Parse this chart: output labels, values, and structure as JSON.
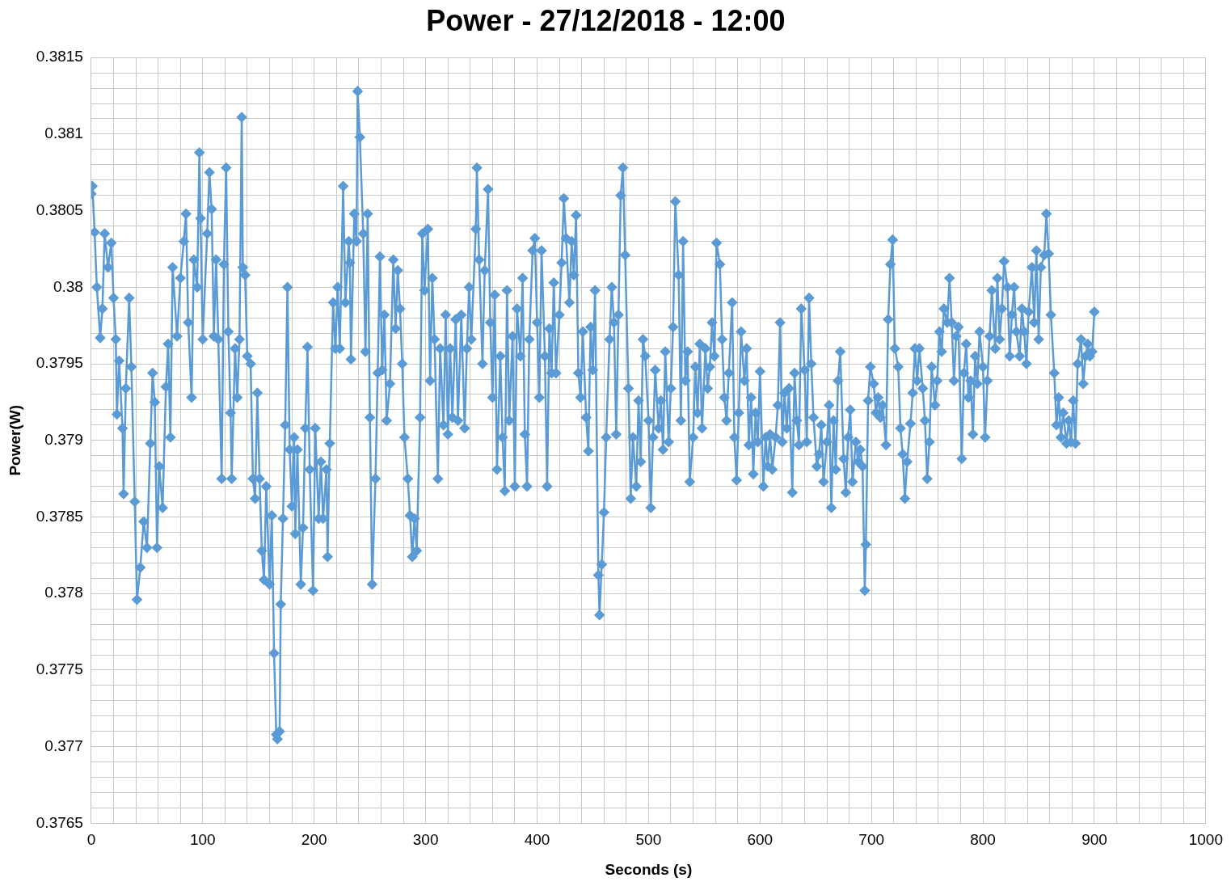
{
  "chart_data": {
    "type": "line",
    "title": "Power - 27/12/2018 - 12:00",
    "xlabel": "Seconds (s)",
    "ylabel": "Power(W)",
    "x": [
      0,
      1,
      3,
      5,
      8,
      10,
      12,
      15,
      18,
      20,
      22,
      23,
      25,
      28,
      29,
      31,
      34,
      36,
      39,
      41,
      44,
      47,
      50,
      53,
      55,
      57,
      59,
      61,
      64,
      67,
      69,
      71,
      73,
      77,
      80,
      83,
      85,
      87,
      90,
      92,
      95,
      97,
      98,
      100,
      104,
      106,
      108,
      110,
      112,
      114,
      117,
      119,
      121,
      123,
      125,
      126,
      129,
      131,
      133,
      135,
      136,
      138,
      140,
      143,
      145,
      147,
      149,
      151,
      153,
      155,
      157,
      160,
      162,
      164,
      166,
      167,
      169,
      170,
      172,
      174,
      176,
      178,
      180,
      182,
      183,
      185,
      188,
      190,
      192,
      194,
      196,
      199,
      201,
      204,
      206,
      208,
      211,
      212,
      214,
      217,
      219,
      221,
      223,
      226,
      228,
      231,
      232,
      233,
      236,
      238,
      239,
      241,
      244,
      246,
      248,
      250,
      252,
      255,
      257,
      259,
      261,
      263,
      265,
      268,
      271,
      273,
      275,
      277,
      279,
      281,
      284,
      286,
      288,
      290,
      292,
      295,
      297,
      299,
      302,
      304,
      306,
      308,
      311,
      313,
      316,
      318,
      320,
      322,
      324,
      327,
      329,
      332,
      335,
      337,
      339,
      341,
      345,
      346,
      348,
      351,
      353,
      356,
      358,
      360,
      362,
      364,
      367,
      369,
      371,
      373,
      375,
      378,
      380,
      382,
      385,
      387,
      389,
      391,
      393,
      396,
      398,
      400,
      402,
      404,
      407,
      409,
      411,
      413,
      415,
      417,
      420,
      422,
      424,
      426,
      429,
      431,
      433,
      435,
      437,
      439,
      441,
      444,
      446,
      448,
      450,
      452,
      455,
      456,
      458,
      460,
      462,
      465,
      467,
      469,
      471,
      473,
      475,
      477,
      479,
      482,
      484,
      486,
      489,
      491,
      493,
      495,
      497,
      500,
      502,
      504,
      506,
      509,
      511,
      513,
      515,
      518,
      520,
      522,
      524,
      527,
      529,
      531,
      533,
      535,
      537,
      540,
      542,
      544,
      546,
      548,
      551,
      553,
      555,
      557,
      559,
      561,
      564,
      566,
      568,
      570,
      572,
      575,
      577,
      579,
      581,
      583,
      586,
      588,
      590,
      592,
      594,
      596,
      598,
      600,
      603,
      605,
      607,
      609,
      611,
      614,
      616,
      618,
      620,
      622,
      624,
      626,
      629,
      631,
      633,
      635,
      637,
      640,
      642,
      644,
      646,
      648,
      651,
      653,
      655,
      657,
      660,
      662,
      664,
      666,
      668,
      670,
      672,
      675,
      677,
      679,
      681,
      683,
      686,
      688,
      690,
      692,
      694,
      695,
      697,
      699,
      702,
      704,
      706,
      708,
      710,
      713,
      715,
      717,
      719,
      721,
      724,
      726,
      728,
      730,
      732,
      735,
      737,
      739,
      741,
      743,
      746,
      748,
      750,
      752,
      754,
      757,
      759,
      761,
      763,
      765,
      768,
      770,
      772,
      774,
      776,
      778,
      781,
      783,
      785,
      787,
      789,
      791,
      793,
      795,
      797,
      800,
      802,
      804,
      806,
      808,
      811,
      813,
      815,
      817,
      819,
      822,
      824,
      826,
      828,
      830,
      833,
      835,
      837,
      839,
      841,
      844,
      846,
      848,
      850,
      852,
      855,
      857,
      859,
      861,
      864,
      866,
      868,
      870,
      872,
      875,
      877,
      879,
      881,
      883,
      885,
      888,
      890,
      892,
      894,
      896,
      898,
      900
    ],
    "series": [
      {
        "color": "#5b9bd5",
        "values": [
          0.38061,
          0.38066,
          0.38036,
          0.38,
          0.37967,
          0.37986,
          0.38035,
          0.38013,
          0.38029,
          0.37993,
          0.37966,
          0.37917,
          0.37952,
          0.37908,
          0.37865,
          0.37934,
          0.37993,
          0.37948,
          0.3786,
          0.37796,
          0.37817,
          0.37847,
          0.3783,
          0.37898,
          0.37944,
          0.37925,
          0.3783,
          0.37883,
          0.37856,
          0.37935,
          0.37963,
          0.37902,
          0.38013,
          0.37968,
          0.38006,
          0.3803,
          0.38048,
          0.37977,
          0.37928,
          0.38018,
          0.38,
          0.38088,
          0.38045,
          0.37966,
          0.38035,
          0.38075,
          0.38051,
          0.37968,
          0.38018,
          0.37966,
          0.37875,
          0.38015,
          0.38078,
          0.37971,
          0.37918,
          0.37875,
          0.3796,
          0.37928,
          0.37966,
          0.38111,
          0.38013,
          0.38008,
          0.37955,
          0.3795,
          0.37875,
          0.37862,
          0.37931,
          0.37875,
          0.37828,
          0.37809,
          0.3787,
          0.37806,
          0.37851,
          0.37761,
          0.37708,
          0.37705,
          0.3771,
          0.37793,
          0.37849,
          0.3791,
          0.38,
          0.37894,
          0.37857,
          0.37902,
          0.37839,
          0.37894,
          0.37806,
          0.37843,
          0.37908,
          0.37961,
          0.37881,
          0.37802,
          0.37908,
          0.37849,
          0.37886,
          0.37849,
          0.37881,
          0.37824,
          0.37898,
          0.3799,
          0.3796,
          0.38,
          0.3796,
          0.38066,
          0.3799,
          0.3803,
          0.38016,
          0.37953,
          0.38048,
          0.3803,
          0.38128,
          0.38098,
          0.38035,
          0.37958,
          0.38048,
          0.37915,
          0.37806,
          0.37875,
          0.37944,
          0.3802,
          0.37946,
          0.37982,
          0.37913,
          0.37937,
          0.38018,
          0.37973,
          0.38011,
          0.37986,
          0.3795,
          0.37902,
          0.37875,
          0.37851,
          0.37824,
          0.37849,
          0.37828,
          0.37915,
          0.38035,
          0.37998,
          0.38038,
          0.37939,
          0.38006,
          0.37966,
          0.37875,
          0.3796,
          0.3791,
          0.37982,
          0.37904,
          0.3796,
          0.37915,
          0.37979,
          0.37913,
          0.37982,
          0.37908,
          0.3796,
          0.38,
          0.37966,
          0.38038,
          0.38078,
          0.38018,
          0.3795,
          0.38011,
          0.38064,
          0.37977,
          0.37928,
          0.37995,
          0.37881,
          0.37955,
          0.37902,
          0.37867,
          0.37998,
          0.37913,
          0.37968,
          0.3787,
          0.37986,
          0.37955,
          0.38006,
          0.37904,
          0.3787,
          0.37966,
          0.38024,
          0.38032,
          0.37977,
          0.37928,
          0.38024,
          0.37955,
          0.3787,
          0.37973,
          0.37944,
          0.38003,
          0.37944,
          0.37982,
          0.38016,
          0.38058,
          0.38032,
          0.3799,
          0.3803,
          0.38008,
          0.38047,
          0.37944,
          0.37928,
          0.37971,
          0.37915,
          0.37893,
          0.37974,
          0.37946,
          0.37998,
          0.37812,
          0.37786,
          0.37819,
          0.37853,
          0.37902,
          0.37966,
          0.38,
          0.37977,
          0.37904,
          0.37982,
          0.3806,
          0.38078,
          0.38021,
          0.37934,
          0.37862,
          0.37902,
          0.3787,
          0.37926,
          0.37886,
          0.37966,
          0.37955,
          0.37913,
          0.37856,
          0.37902,
          0.37946,
          0.37908,
          0.37926,
          0.37894,
          0.37958,
          0.37899,
          0.37934,
          0.37974,
          0.38056,
          0.38008,
          0.37913,
          0.3803,
          0.37939,
          0.37958,
          0.37873,
          0.37902,
          0.37948,
          0.37918,
          0.37963,
          0.37908,
          0.3796,
          0.37934,
          0.37948,
          0.37977,
          0.37955,
          0.38029,
          0.38015,
          0.37966,
          0.37928,
          0.37913,
          0.37944,
          0.3799,
          0.37902,
          0.37874,
          0.37918,
          0.37971,
          0.37939,
          0.3796,
          0.37897,
          0.37928,
          0.37878,
          0.37918,
          0.37899,
          0.37945,
          0.3787,
          0.37902,
          0.37883,
          0.37904,
          0.37881,
          0.37902,
          0.37923,
          0.37977,
          0.37899,
          0.37931,
          0.37908,
          0.37934,
          0.37866,
          0.37944,
          0.37913,
          0.37897,
          0.37986,
          0.37946,
          0.37899,
          0.37993,
          0.3795,
          0.37915,
          0.37883,
          0.37891,
          0.3791,
          0.37873,
          0.37899,
          0.37923,
          0.37856,
          0.37913,
          0.37881,
          0.37939,
          0.37958,
          0.37888,
          0.37866,
          0.37902,
          0.3792,
          0.37873,
          0.37899,
          0.37886,
          0.37894,
          0.37883,
          0.37802,
          0.37832,
          0.37926,
          0.37948,
          0.37937,
          0.37918,
          0.37928,
          0.37915,
          0.37923,
          0.37897,
          0.37979,
          0.38015,
          0.38031,
          0.3796,
          0.37948,
          0.37908,
          0.37891,
          0.37862,
          0.37886,
          0.37911,
          0.37931,
          0.3796,
          0.37939,
          0.3796,
          0.37934,
          0.37913,
          0.37875,
          0.37899,
          0.37948,
          0.37923,
          0.37939,
          0.37971,
          0.37958,
          0.37986,
          0.37977,
          0.38006,
          0.37977,
          0.37939,
          0.37968,
          0.37974,
          0.37888,
          0.37944,
          0.37963,
          0.37928,
          0.37939,
          0.37904,
          0.37955,
          0.37937,
          0.37971,
          0.37948,
          0.37902,
          0.37939,
          0.37968,
          0.37998,
          0.3796,
          0.38006,
          0.37966,
          0.37986,
          0.38017,
          0.38,
          0.37955,
          0.37982,
          0.38,
          0.37971,
          0.37955,
          0.37986,
          0.37971,
          0.3795,
          0.37984,
          0.38013,
          0.37977,
          0.38024,
          0.37966,
          0.38013,
          0.38021,
          0.38048,
          0.38022,
          0.37982,
          0.37944,
          0.3791,
          0.37928,
          0.37902,
          0.37918,
          0.37898,
          0.37913,
          0.37899,
          0.37926,
          0.37898,
          0.3795,
          0.37966,
          0.37937,
          0.37955,
          0.37963,
          0.37955,
          0.37958,
          0.37984
        ]
      }
    ],
    "xlim": [
      0,
      1000
    ],
    "xticks": [
      0,
      {
        "value": 20,
        "label": null
      },
      {
        "value": 40,
        "label": null
      },
      {
        "value": 60,
        "label": null
      },
      {
        "value": 80,
        "label": null
      },
      100,
      {
        "value": 120,
        "label": null
      },
      {
        "value": 140,
        "label": null
      },
      {
        "value": 160,
        "label": null
      },
      {
        "value": 180,
        "label": null
      },
      200,
      {
        "value": 220,
        "label": null
      },
      {
        "value": 240,
        "label": null
      },
      {
        "value": 260,
        "label": null
      },
      {
        "value": 280,
        "label": null
      },
      300,
      {
        "value": 320,
        "label": null
      },
      {
        "value": 340,
        "label": null
      },
      {
        "value": 360,
        "label": null
      },
      {
        "value": 380,
        "label": null
      },
      400,
      {
        "value": 420,
        "label": null
      },
      {
        "value": 440,
        "label": null
      },
      {
        "value": 460,
        "label": null
      },
      {
        "value": 480,
        "label": null
      },
      500,
      {
        "value": 520,
        "label": null
      },
      {
        "value": 540,
        "label": null
      },
      {
        "value": 560,
        "label": null
      },
      {
        "value": 580,
        "label": null
      },
      600,
      {
        "value": 620,
        "label": null
      },
      {
        "value": 640,
        "label": null
      },
      {
        "value": 660,
        "label": null
      },
      {
        "value": 680,
        "label": null
      },
      700,
      {
        "value": 720,
        "label": null
      },
      {
        "value": 740,
        "label": null
      },
      {
        "value": 760,
        "label": null
      },
      {
        "value": 780,
        "label": null
      },
      800,
      {
        "value": 820,
        "label": null
      },
      {
        "value": 840,
        "label": null
      },
      {
        "value": 860,
        "label": null
      },
      {
        "value": 880,
        "label": null
      },
      900,
      {
        "value": 920,
        "label": null
      },
      {
        "value": 940,
        "label": null
      },
      {
        "value": 960,
        "label": null
      },
      {
        "value": 980,
        "label": null
      },
      1000
    ],
    "ylim": [
      0.3765,
      0.3815
    ],
    "yticks": [
      0.3765,
      {
        "value": 0.3766,
        "label": null
      },
      {
        "value": 0.3767,
        "label": null
      },
      {
        "value": 0.3768,
        "label": null
      },
      {
        "value": 0.3769,
        "label": null
      },
      0.377,
      {
        "value": 0.3771,
        "label": null
      },
      {
        "value": 0.3772,
        "label": null
      },
      {
        "value": 0.3773,
        "label": null
      },
      {
        "value": 0.3774,
        "label": null
      },
      0.3775,
      {
        "value": 0.3776,
        "label": null
      },
      {
        "value": 0.3777,
        "label": null
      },
      {
        "value": 0.3778,
        "label": null
      },
      {
        "value": 0.3779,
        "label": null
      },
      0.378,
      {
        "value": 0.3781,
        "label": null
      },
      {
        "value": 0.3782,
        "label": null
      },
      {
        "value": 0.3783,
        "label": null
      },
      {
        "value": 0.3784,
        "label": null
      },
      0.3785,
      {
        "value": 0.3786,
        "label": null
      },
      {
        "value": 0.3787,
        "label": null
      },
      {
        "value": 0.3788,
        "label": null
      },
      {
        "value": 0.3789,
        "label": null
      },
      0.379,
      {
        "value": 0.3791,
        "label": null
      },
      {
        "value": 0.3792,
        "label": null
      },
      {
        "value": 0.3793,
        "label": null
      },
      {
        "value": 0.3794,
        "label": null
      },
      0.3795,
      {
        "value": 0.3796,
        "label": null
      },
      {
        "value": 0.3797,
        "label": null
      },
      {
        "value": 0.3798,
        "label": null
      },
      {
        "value": 0.3799,
        "label": null
      },
      0.38,
      {
        "value": 0.3801,
        "label": null
      },
      {
        "value": 0.3802,
        "label": null
      },
      {
        "value": 0.3803,
        "label": null
      },
      {
        "value": 0.3804,
        "label": null
      },
      0.3805,
      {
        "value": 0.3806,
        "label": null
      },
      {
        "value": 0.3807,
        "label": null
      },
      {
        "value": 0.3808,
        "label": null
      },
      {
        "value": 0.3809,
        "label": null
      },
      0.381,
      {
        "value": 0.3811,
        "label": null
      },
      {
        "value": 0.3812,
        "label": null
      },
      {
        "value": 0.3813,
        "label": null
      },
      {
        "value": 0.3814,
        "label": null
      },
      0.3815
    ],
    "grid": true,
    "marker": "diamond",
    "line_style": "solid"
  }
}
